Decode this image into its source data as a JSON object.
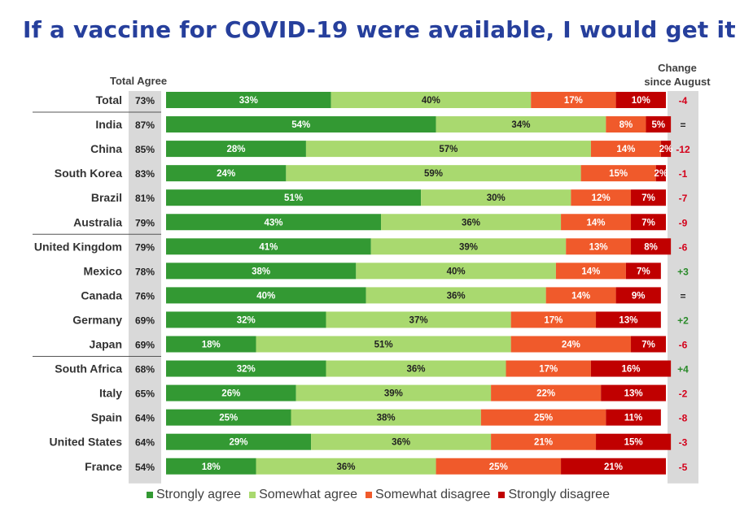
{
  "title": "If a vaccine for COVID-19 were available, I would get it",
  "headers": {
    "total_agree": "Total Agree",
    "change_line1": "Change",
    "change_line2": "since August"
  },
  "colors": {
    "strongly_agree": "#339933",
    "somewhat_agree": "#a9d96f",
    "somewhat_disagree": "#f05a2b",
    "strongly_disagree": "#c00000",
    "change_negative": "#d4001a",
    "change_positive": "#2a8a2a",
    "change_neutral": "#222222",
    "column_bg": "#d9d9d9"
  },
  "legend": [
    {
      "label": "Strongly agree",
      "color": "#339933"
    },
    {
      "label": "Somewhat agree",
      "color": "#a9d96f"
    },
    {
      "label": "Somewhat disagree",
      "color": "#f05a2b"
    },
    {
      "label": "Strongly disagree",
      "color": "#c00000"
    }
  ],
  "chart_data": {
    "type": "bar",
    "orientation": "horizontal",
    "stacked": true,
    "title": "If a vaccine for COVID-19 were available, I would get it",
    "categories": [
      "Total",
      "India",
      "China",
      "South Korea",
      "Brazil",
      "Australia",
      "United Kingdom",
      "Mexico",
      "Canada",
      "Germany",
      "Japan",
      "South Africa",
      "Italy",
      "Spain",
      "United States",
      "France"
    ],
    "series": [
      {
        "name": "Strongly agree",
        "values": [
          33,
          54,
          28,
          24,
          51,
          43,
          41,
          38,
          40,
          32,
          18,
          32,
          26,
          25,
          29,
          18
        ]
      },
      {
        "name": "Somewhat agree",
        "values": [
          40,
          34,
          57,
          59,
          30,
          36,
          39,
          40,
          36,
          37,
          51,
          36,
          39,
          38,
          36,
          36
        ]
      },
      {
        "name": "Somewhat disagree",
        "values": [
          17,
          8,
          14,
          15,
          12,
          14,
          13,
          14,
          14,
          17,
          24,
          17,
          22,
          25,
          21,
          25
        ]
      },
      {
        "name": "Strongly disagree",
        "values": [
          10,
          5,
          2,
          2,
          7,
          7,
          8,
          7,
          9,
          13,
          7,
          16,
          13,
          11,
          15,
          21
        ]
      }
    ],
    "total_agree": [
      "73%",
      "87%",
      "85%",
      "83%",
      "81%",
      "79%",
      "79%",
      "78%",
      "76%",
      "69%",
      "69%",
      "68%",
      "65%",
      "64%",
      "64%",
      "54%"
    ],
    "change_since_august": [
      "-4",
      "=",
      "-12",
      "-1",
      "-7",
      "-9",
      "-6",
      "+3",
      "=",
      "+2",
      "-6",
      "+4",
      "-2",
      "-8",
      "-3",
      "-5"
    ],
    "group_separators_after": [
      "Total",
      "Australia",
      "Japan"
    ]
  }
}
